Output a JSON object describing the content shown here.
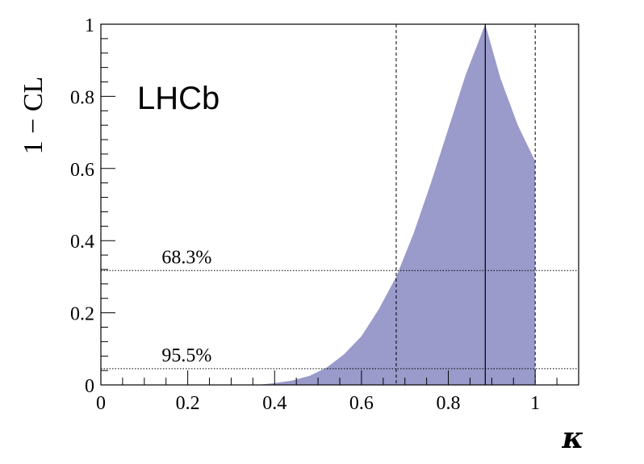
{
  "chart_data": {
    "type": "area",
    "xlabel": "κ",
    "ylabel": "1 − CL",
    "xlim": [
      0,
      1.1
    ],
    "ylim": [
      0,
      1
    ],
    "x_ticks": [
      {
        "value": 0,
        "label": "0"
      },
      {
        "value": 0.2,
        "label": "0.2"
      },
      {
        "value": 0.4,
        "label": "0.4"
      },
      {
        "value": 0.6,
        "label": "0.6"
      },
      {
        "value": 0.8,
        "label": "0.8"
      },
      {
        "value": 1,
        "label": "1"
      }
    ],
    "y_ticks": [
      {
        "value": 0,
        "label": "0"
      },
      {
        "value": 0.2,
        "label": "0.2"
      },
      {
        "value": 0.4,
        "label": "0.4"
      },
      {
        "value": 0.6,
        "label": "0.6"
      },
      {
        "value": 0.8,
        "label": "0.8"
      },
      {
        "value": 1,
        "label": "1"
      }
    ],
    "experiment_label": "LHCb",
    "fill_color": "#9a9acb",
    "series": [
      {
        "x": [
          0.36,
          0.4,
          0.44,
          0.48,
          0.52,
          0.56,
          0.6,
          0.64,
          0.68,
          0.72,
          0.76,
          0.8,
          0.84,
          0.885,
          0.92,
          0.96,
          1.0,
          1.0
        ],
        "y": [
          0.0,
          0.005,
          0.012,
          0.025,
          0.048,
          0.085,
          0.135,
          0.21,
          0.3,
          0.42,
          0.56,
          0.71,
          0.86,
          1.0,
          0.85,
          0.72,
          0.62,
          0.0
        ]
      }
    ],
    "best_fit": 0.885,
    "interval_68": [
      0.68,
      1.0
    ],
    "cl_lines": [
      {
        "label": "68.3%",
        "y": 0.317
      },
      {
        "label": "95.5%",
        "y": 0.045
      }
    ]
  }
}
